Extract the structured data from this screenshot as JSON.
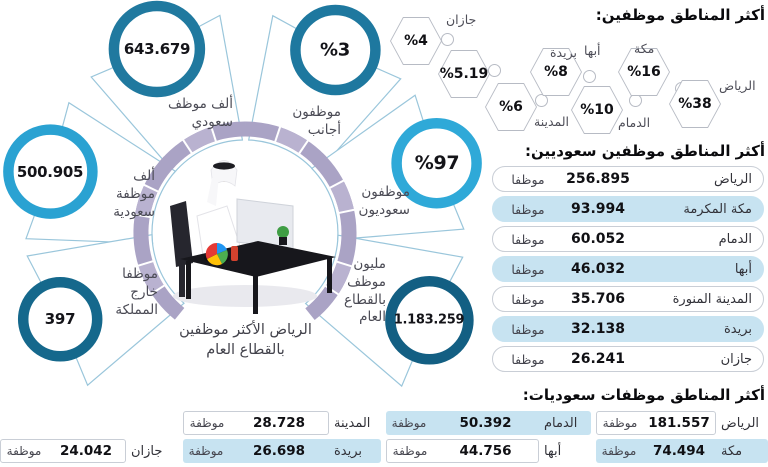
{
  "infographic": {
    "center_caption": "الرياض الأكثر موظفين بالقطاع العام",
    "stats": [
      {
        "value": "643.679",
        "label": "ألف موظف سعودي"
      },
      {
        "value": "%3",
        "label": "موظفون أجانب"
      },
      {
        "value": "500.905",
        "label": "ألف موظفة سعودية"
      },
      {
        "value": "%97",
        "label": "موظفون سعوديون"
      },
      {
        "value": "397",
        "label": "موظفا خارج المملكة"
      },
      {
        "value": "1.183.259",
        "label": "مليون موظف بالقطاع العام"
      }
    ]
  },
  "top_regions": {
    "title": "أكثر المناطق موظفين:",
    "items": [
      {
        "name": "الرياض",
        "value": "%38"
      },
      {
        "name": "مكة",
        "value": "%16"
      },
      {
        "name": "الدمام",
        "value": "%10"
      },
      {
        "name": "أبها",
        "value": "%8"
      },
      {
        "name": "المدينة",
        "value": "%6"
      },
      {
        "name": "بريدة",
        "value": "%5.19"
      },
      {
        "name": "جازان",
        "value": "%4"
      }
    ]
  },
  "saudi_employees": {
    "title": "أكثر المناطق موظفين سعوديين:",
    "unit": "موظفا",
    "rows": [
      {
        "region": "الرياض",
        "value": "256.895"
      },
      {
        "region": "مكة المكرمة",
        "value": "93.994"
      },
      {
        "region": "الدمام",
        "value": "60.052"
      },
      {
        "region": "أبها",
        "value": "46.032"
      },
      {
        "region": "المدينة المنورة",
        "value": "35.706"
      },
      {
        "region": "بريدة",
        "value": "32.138"
      },
      {
        "region": "جازان",
        "value": "26.241"
      }
    ]
  },
  "saudi_female_employees": {
    "title": "أكثر المناطق موظفات سعوديات:",
    "unit": "موظفة",
    "rows": [
      {
        "region": "الرياض",
        "value": "181.557"
      },
      {
        "region": "مكة",
        "value": "74.494"
      },
      {
        "region": "الدمام",
        "value": "50.392"
      },
      {
        "region": "أبها",
        "value": "44.756"
      },
      {
        "region": "المدينة",
        "value": "28.728"
      },
      {
        "region": "بريدة",
        "value": "26.698"
      },
      {
        "region": "جازان",
        "value": "24.042"
      }
    ]
  },
  "chart_data": [
    {
      "type": "pie",
      "title": "أكثر المناطق موظفين:",
      "categories": [
        "الرياض",
        "مكة",
        "الدمام",
        "أبها",
        "المدينة",
        "بريدة",
        "جازان"
      ],
      "values": [
        38,
        16,
        10,
        8,
        6,
        5.19,
        4
      ],
      "unit": "%"
    },
    {
      "type": "table",
      "title": "أكثر المناطق موظفين سعوديين:",
      "categories": [
        "الرياض",
        "مكة المكرمة",
        "الدمام",
        "أبها",
        "المدينة المنورة",
        "بريدة",
        "جازان"
      ],
      "values": [
        256895,
        93994,
        60052,
        46032,
        35706,
        32138,
        26241
      ],
      "unit": "موظفا"
    },
    {
      "type": "table",
      "title": "أكثر المناطق موظفات سعوديات:",
      "categories": [
        "الرياض",
        "مكة",
        "الدمام",
        "أبها",
        "المدينة",
        "بريدة",
        "جازان"
      ],
      "values": [
        181557,
        74494,
        50392,
        44756,
        28728,
        26698,
        24042
      ],
      "unit": "موظفة"
    },
    {
      "type": "table",
      "title": "الرياض الأكثر موظفين بالقطاع العام",
      "categories": [
        "مليون موظف بالقطاع العام",
        "موظفون سعوديون",
        "موظفون أجانب",
        "ألف موظف سعودي",
        "ألف موظفة سعودية",
        "موظفا خارج المملكة"
      ],
      "values": [
        "1.183.259",
        "97%",
        "3%",
        "643.679",
        "500.905",
        "397"
      ]
    }
  ],
  "colors": {
    "row_blue": "#c7e3f1",
    "ring_purple": "#aaa3c5",
    "circle_blues": [
      "#20799f",
      "#1e789f",
      "#2aa2d2",
      "#2fa9d8",
      "#15688c",
      "#135f83"
    ]
  }
}
